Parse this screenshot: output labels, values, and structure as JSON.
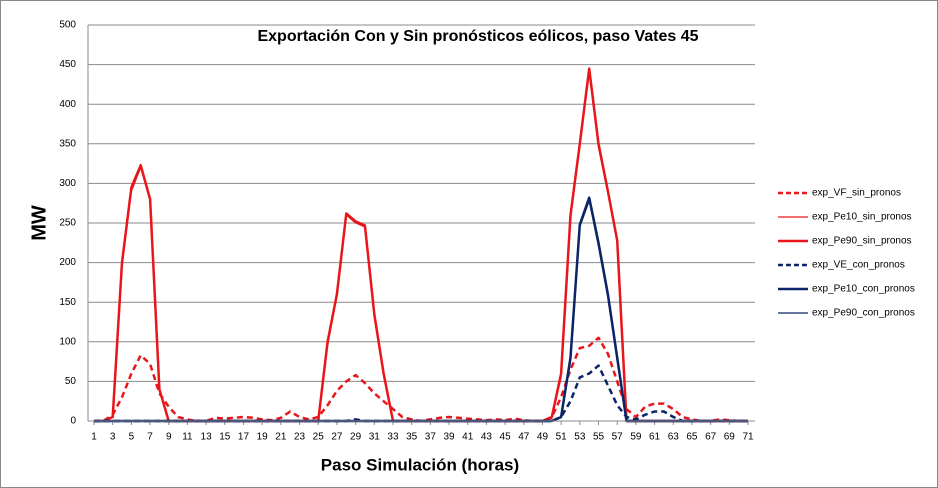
{
  "chart_data": {
    "type": "line",
    "title": "Exportación Con y Sin pronósticos eólicos, paso Vates 45",
    "x_label": "Paso Simulación (horas)",
    "y_label": "MW",
    "x": [
      1,
      2,
      3,
      4,
      5,
      6,
      7,
      8,
      9,
      10,
      11,
      12,
      13,
      14,
      15,
      16,
      17,
      18,
      19,
      20,
      21,
      22,
      23,
      24,
      25,
      26,
      27,
      28,
      29,
      30,
      31,
      32,
      33,
      34,
      35,
      36,
      37,
      38,
      39,
      40,
      41,
      42,
      43,
      44,
      45,
      46,
      47,
      48,
      49,
      50,
      51,
      52,
      53,
      54,
      55,
      56,
      57,
      58,
      59,
      60,
      61,
      62,
      63,
      64,
      65,
      66,
      67,
      68,
      69,
      70,
      71
    ],
    "xlim": [
      1,
      71
    ],
    "xticks": [
      1,
      3,
      5,
      7,
      9,
      11,
      13,
      15,
      17,
      19,
      21,
      23,
      25,
      27,
      29,
      31,
      33,
      35,
      37,
      39,
      41,
      43,
      45,
      47,
      49,
      51,
      53,
      55,
      57,
      59,
      61,
      63,
      65,
      67,
      69,
      71
    ],
    "ylim": [
      0,
      500
    ],
    "yticks": [
      0,
      50,
      100,
      150,
      200,
      250,
      300,
      350,
      400,
      450,
      500
    ],
    "grid": true,
    "legend": "right",
    "series": [
      {
        "name": "exp_VF_sin_pronos",
        "color": "#e8161b",
        "dash": true,
        "width": 2.5,
        "values": [
          0,
          0,
          8,
          30,
          60,
          83,
          72,
          35,
          18,
          5,
          2,
          0,
          0,
          4,
          3,
          4,
          5,
          4,
          2,
          1,
          4,
          12,
          5,
          2,
          5,
          20,
          38,
          50,
          58,
          48,
          35,
          25,
          15,
          5,
          2,
          0,
          2,
          4,
          5,
          4,
          3,
          2,
          1,
          2,
          1,
          3,
          1,
          0,
          0,
          5,
          30,
          65,
          92,
          95,
          105,
          85,
          50,
          15,
          5,
          18,
          22,
          22,
          15,
          5,
          2,
          0,
          0,
          2,
          1,
          0,
          0
        ]
      },
      {
        "name": "exp_Pe10_sin_pronos",
        "color": "#e8161b",
        "dash": false,
        "width": 1.2,
        "values": [
          0,
          0,
          5,
          195,
          290,
          320,
          278,
          38,
          0,
          0,
          0,
          0,
          0,
          0,
          0,
          0,
          0,
          0,
          0,
          0,
          0,
          0,
          0,
          0,
          0,
          95,
          158,
          260,
          250,
          245,
          130,
          58,
          0,
          0,
          0,
          0,
          0,
          0,
          0,
          0,
          0,
          0,
          0,
          0,
          0,
          0,
          0,
          0,
          0,
          3,
          55,
          255,
          348,
          440,
          345,
          288,
          225,
          0,
          0,
          0,
          0,
          0,
          0,
          0,
          0,
          0,
          0,
          0,
          0,
          0,
          0
        ]
      },
      {
        "name": "exp_Pe90_sin_pronos",
        "color": "#e8161b",
        "dash": false,
        "width": 2.5,
        "values": [
          0,
          0,
          5,
          200,
          295,
          323,
          280,
          40,
          0,
          0,
          0,
          0,
          0,
          0,
          0,
          0,
          0,
          0,
          0,
          0,
          0,
          0,
          0,
          0,
          0,
          100,
          160,
          262,
          252,
          247,
          135,
          60,
          0,
          0,
          0,
          0,
          0,
          0,
          0,
          0,
          0,
          0,
          0,
          0,
          0,
          0,
          0,
          0,
          0,
          5,
          60,
          260,
          350,
          445,
          350,
          290,
          228,
          0,
          0,
          0,
          0,
          0,
          0,
          0,
          0,
          0,
          0,
          0,
          0,
          0,
          0
        ]
      },
      {
        "name": "exp_VE_con_pronos",
        "color": "#0b2566",
        "dash": true,
        "width": 2.5,
        "values": [
          0,
          0,
          0,
          0,
          0,
          0,
          0,
          0,
          0,
          0,
          0,
          0,
          0,
          0,
          0,
          0,
          0,
          0,
          0,
          0,
          0,
          0,
          0,
          0,
          0,
          0,
          0,
          0,
          2,
          0,
          0,
          0,
          0,
          0,
          0,
          0,
          0,
          0,
          0,
          0,
          0,
          0,
          0,
          0,
          0,
          0,
          0,
          0,
          0,
          0,
          5,
          25,
          55,
          60,
          70,
          45,
          20,
          5,
          2,
          8,
          12,
          12,
          5,
          0,
          0,
          0,
          0,
          0,
          0,
          0,
          0
        ]
      },
      {
        "name": "exp_Pe10_con_pronos",
        "color": "#0b2566",
        "dash": false,
        "width": 2.5,
        "values": [
          0,
          0,
          0,
          0,
          0,
          0,
          0,
          0,
          0,
          0,
          0,
          0,
          0,
          0,
          0,
          0,
          0,
          0,
          0,
          0,
          0,
          0,
          0,
          0,
          0,
          0,
          0,
          0,
          0,
          0,
          0,
          0,
          0,
          0,
          0,
          0,
          0,
          0,
          0,
          0,
          0,
          0,
          0,
          0,
          0,
          0,
          0,
          0,
          0,
          0,
          5,
          80,
          248,
          282,
          225,
          160,
          80,
          0,
          0,
          0,
          0,
          0,
          0,
          0,
          0,
          0,
          0,
          0,
          0,
          0,
          0
        ]
      },
      {
        "name": "exp_Pe90_con_pronos",
        "color": "#0b2566",
        "dash": false,
        "width": 1.2,
        "values": [
          0,
          0,
          0,
          0,
          0,
          0,
          0,
          0,
          0,
          0,
          0,
          0,
          0,
          0,
          0,
          0,
          0,
          0,
          0,
          0,
          0,
          0,
          0,
          0,
          0,
          0,
          0,
          0,
          0,
          0,
          0,
          0,
          0,
          0,
          0,
          0,
          0,
          0,
          0,
          0,
          0,
          0,
          0,
          0,
          0,
          0,
          0,
          0,
          0,
          0,
          4,
          75,
          245,
          278,
          220,
          155,
          75,
          0,
          0,
          0,
          0,
          0,
          0,
          0,
          0,
          0,
          0,
          0,
          0,
          0,
          0
        ]
      }
    ]
  }
}
